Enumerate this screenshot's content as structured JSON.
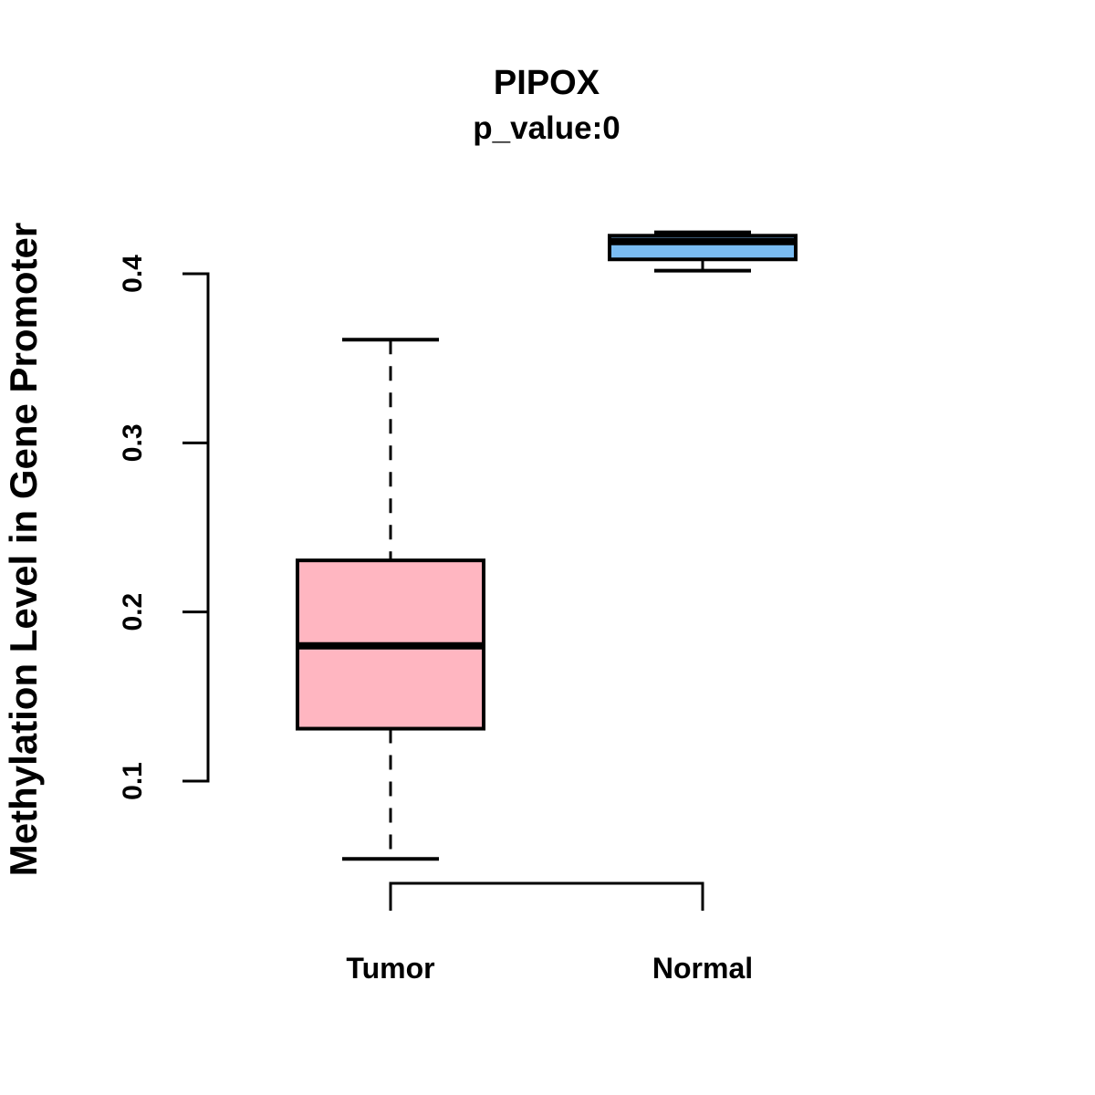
{
  "figure": {
    "background_color": "#FFFFFF",
    "line_color": "#000000"
  },
  "chart_data": {
    "type": "boxplot",
    "title": "PIPOX",
    "subtitle": "p_value:0",
    "ylabel": "Methylation Level in Gene Promoter",
    "xlabel": "",
    "ylim": [
      0.04,
      0.44
    ],
    "yticks": [
      0.1,
      0.2,
      0.3,
      0.4
    ],
    "ytick_labels": [
      "0.1",
      "0.2",
      "0.3",
      "0.4"
    ],
    "grid": false,
    "legend": false,
    "whisker_style": "dashed",
    "groups": [
      {
        "label": "Tumor",
        "fill_color": "#FFB6C1",
        "stats": {
          "whisker_low": 0.054,
          "q1": 0.131,
          "median": 0.18,
          "q3": 0.2305,
          "whisker_high": 0.361
        }
      },
      {
        "label": "Normal",
        "fill_color": "#7ABCF2",
        "stats": {
          "whisker_low": 0.4018,
          "q1": 0.4085,
          "median": 0.419,
          "q3": 0.4225,
          "whisker_high": 0.4245
        }
      }
    ]
  }
}
